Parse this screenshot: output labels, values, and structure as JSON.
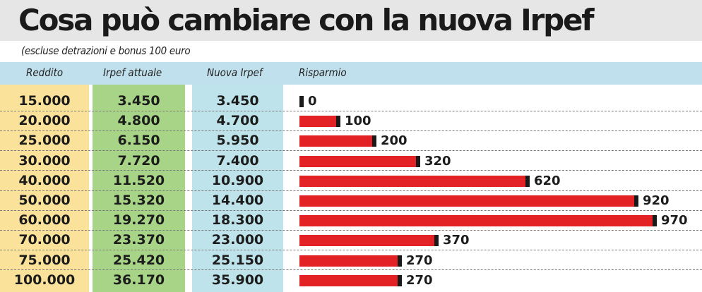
{
  "title": "Cosa può cambiare con la nuova Irpef",
  "subtitle": "(escluse detrazioni e bonus 100 euro",
  "columns": [
    "Reddito",
    "Irpef attuale",
    "Nuova Irpef",
    "Risparmio"
  ],
  "colors": {
    "title_band": "#e6e6e6",
    "header_band": "#bfe0ec",
    "reddito_col": "#fbe29a",
    "attuale_col": "#a7d486",
    "nuova_col": "#bfe3ea",
    "bar": "#e32226",
    "bar_end": "#1a1a1a"
  },
  "chart_data": {
    "type": "bar",
    "orientation": "horizontal",
    "title": "Cosa può cambiare con la nuova Irpef",
    "subtitle": "(escluse detrazioni e bonus 100 euro",
    "categories": [
      "15.000",
      "20.000",
      "25.000",
      "30.000",
      "40.000",
      "50.000",
      "60.000",
      "70.000",
      "75.000",
      "100.000"
    ],
    "table": {
      "reddito": [
        "15.000",
        "20.000",
        "25.000",
        "30.000",
        "40.000",
        "50.000",
        "60.000",
        "70.000",
        "75.000",
        "100.000"
      ],
      "irpef_attuale": [
        "3.450",
        "4.800",
        "6.150",
        "7.720",
        "11.520",
        "15.320",
        "19.270",
        "23.370",
        "25.420",
        "36.170"
      ],
      "nuova_irpef": [
        "3.450",
        "4.700",
        "5.950",
        "7.400",
        "10.900",
        "14.400",
        "18.300",
        "23.000",
        "25.150",
        "35.900"
      ]
    },
    "series": [
      {
        "name": "Risparmio",
        "values": [
          0,
          100,
          200,
          320,
          620,
          920,
          970,
          370,
          270,
          270
        ]
      }
    ],
    "value_labels": [
      "0",
      "100",
      "200",
      "320",
      "620",
      "920",
      "970",
      "370",
      "270",
      "270"
    ],
    "xlim": [
      0,
      970
    ],
    "grid": false,
    "legend": "none"
  }
}
